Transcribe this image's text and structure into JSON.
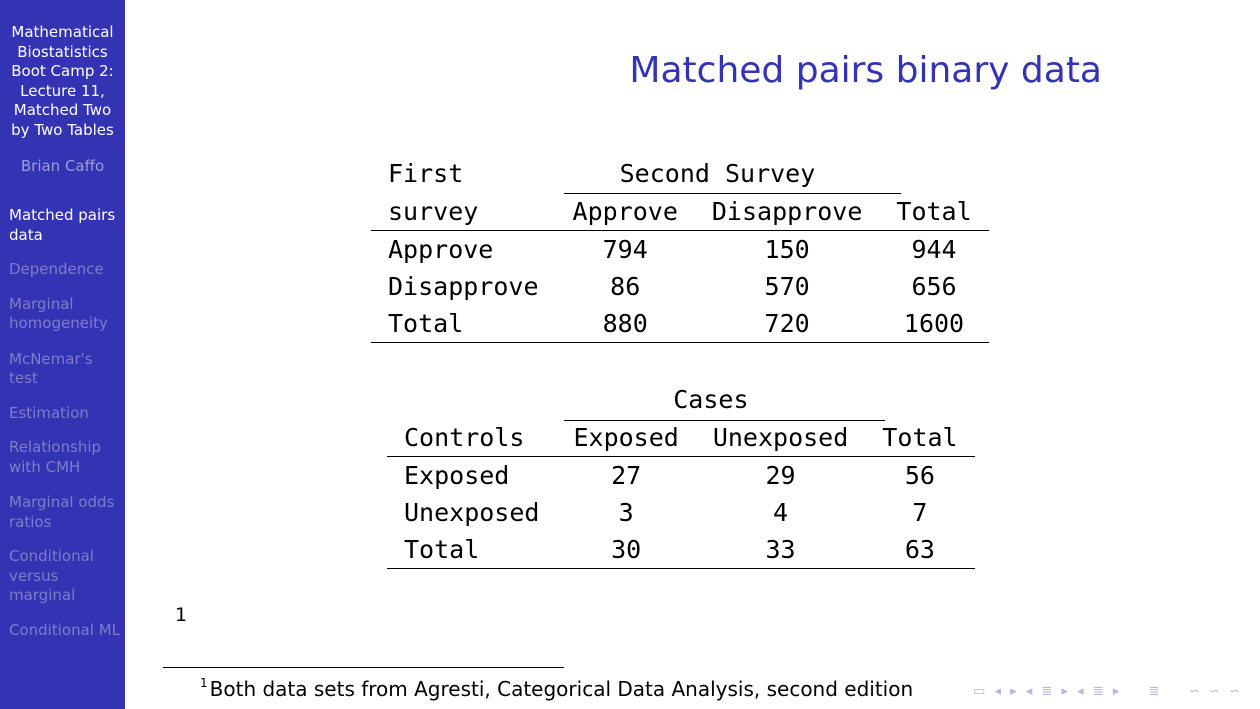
{
  "sidebar": {
    "title": "Mathematical Biostatistics Boot Camp 2: Lecture 11, Matched Two by Two Tables",
    "author": "Brian Caffo",
    "items": [
      {
        "label": "Matched pairs data",
        "active": true
      },
      {
        "label": "Dependence",
        "active": false
      },
      {
        "label": "Marginal homogeneity",
        "active": false
      },
      {
        "label": "McNemar's test",
        "active": false
      },
      {
        "label": "Estimation",
        "active": false
      },
      {
        "label": "Relationship with CMH",
        "active": false
      },
      {
        "label": "Marginal odds ratios",
        "active": false
      },
      {
        "label": "Conditional versus marginal",
        "active": false
      },
      {
        "label": "Conditional ML",
        "active": false
      }
    ]
  },
  "frame": {
    "title": "Matched pairs binary data"
  },
  "table1": {
    "row_header_top": "First",
    "row_header_bottom": "survey",
    "span_header": "Second Survey",
    "columns": [
      "Approve",
      "Disapprove",
      "Total"
    ],
    "rows": [
      {
        "label": "Approve",
        "values": [
          "794",
          "150",
          "944"
        ]
      },
      {
        "label": "Disapprove",
        "values": [
          "86",
          "570",
          "656"
        ]
      },
      {
        "label": "Total",
        "values": [
          "880",
          "720",
          "1600"
        ]
      }
    ]
  },
  "table2": {
    "row_header": "Controls",
    "span_header": "Cases",
    "columns": [
      "Exposed",
      "Unexposed",
      "Total"
    ],
    "rows": [
      {
        "label": "Exposed",
        "values": [
          "27",
          "29",
          "56"
        ]
      },
      {
        "label": "Unexposed",
        "values": [
          "3",
          "4",
          "7"
        ]
      },
      {
        "label": "Total",
        "values": [
          "30",
          "33",
          "63"
        ]
      }
    ]
  },
  "footnote": {
    "marker": "1",
    "text": "Both data sets from Agresti, Categorical Data Analysis, second edition"
  },
  "nav_symbols": [
    "▭",
    "◂",
    "▸",
    "◂",
    "≣",
    "▸",
    "◂",
    "≣",
    "▸",
    "≣",
    "∽",
    "∽",
    "∽"
  ]
}
